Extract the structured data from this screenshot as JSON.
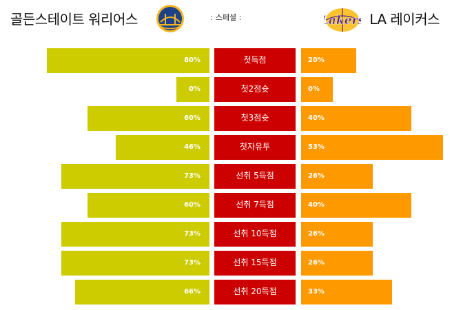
{
  "header": {
    "home_team": "골든스테이트 워리어스",
    "away_team": "LA 레이커스",
    "title": ": 스페셜 :"
  },
  "logos": {
    "home_logo": "gsw-logo-icon",
    "away_logo": "lakers-logo-icon"
  },
  "colors": {
    "home_bar": "#cccc00",
    "away_bar": "#ff9900",
    "category": "#cc0000"
  },
  "rows": [
    {
      "label": "첫득점",
      "home": 80,
      "away": 20,
      "home_label": "80%",
      "away_label": "20%"
    },
    {
      "label": "첫2점슛",
      "home": 0,
      "away": 0,
      "home_label": "0%",
      "away_label": "0%"
    },
    {
      "label": "첫3점슛",
      "home": 60,
      "away": 40,
      "home_label": "60%",
      "away_label": "40%"
    },
    {
      "label": "첫자유투",
      "home": 46,
      "away": 53,
      "home_label": "46%",
      "away_label": "53%"
    },
    {
      "label": "선취 5득점",
      "home": 73,
      "away": 26,
      "home_label": "73%",
      "away_label": "26%"
    },
    {
      "label": "선취 7득점",
      "home": 60,
      "away": 40,
      "home_label": "60%",
      "away_label": "40%"
    },
    {
      "label": "선취 10득점",
      "home": 73,
      "away": 26,
      "home_label": "73%",
      "away_label": "26%"
    },
    {
      "label": "선취 15득점",
      "home": 73,
      "away": 26,
      "home_label": "73%",
      "away_label": "26%"
    },
    {
      "label": "선취 20득점",
      "home": 66,
      "away": 33,
      "home_label": "66%",
      "away_label": "33%"
    }
  ]
}
